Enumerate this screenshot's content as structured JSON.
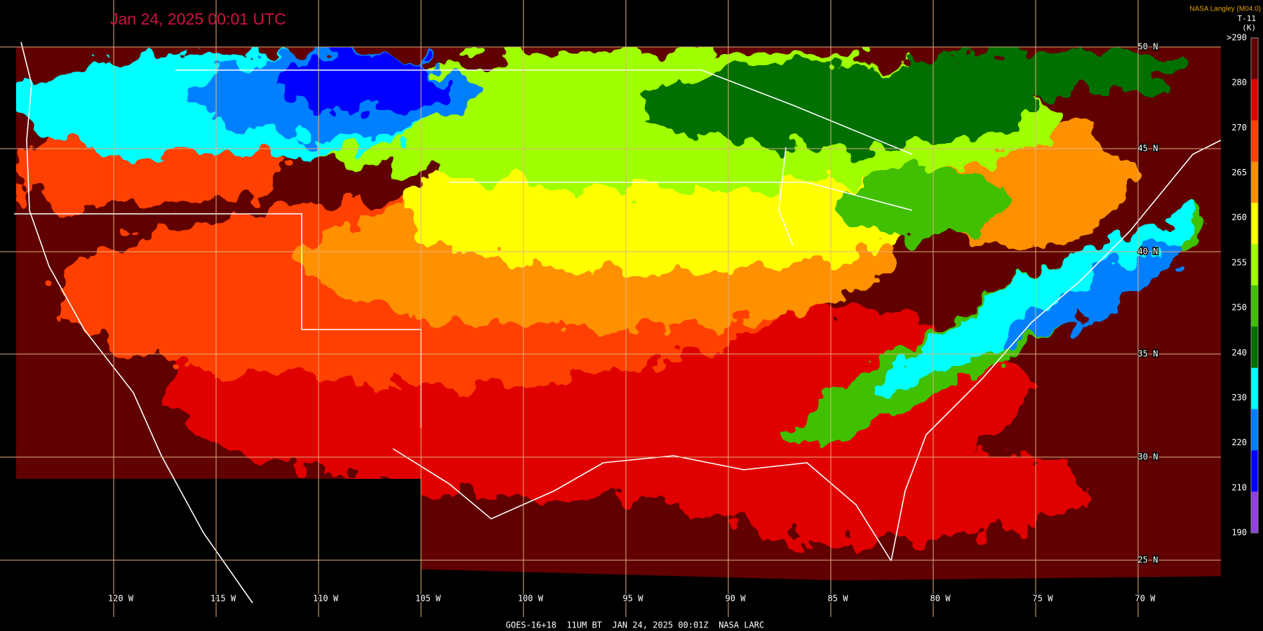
{
  "header": {
    "title": "Jan 24, 2025 00:01 UTC",
    "source": "NASA Langley (M04.0)",
    "product": "T-11",
    "unit": "(K)"
  },
  "colorbar": {
    "labels": [
      ">290",
      "280",
      "270",
      "265",
      "260",
      "255",
      "250",
      "240",
      "230",
      "220",
      "210",
      "190"
    ],
    "colors": [
      "#600000",
      "#e00000",
      "#ff4000",
      "#ff9000",
      "#ffff00",
      "#a0ff00",
      "#40c000",
      "#007000",
      "#00ffff",
      "#0080ff",
      "#0000ff",
      "#9040e0"
    ]
  },
  "latitude_labels": [
    "50 N",
    "45 N",
    "40 N",
    "35 N",
    "30 N",
    "25 N"
  ],
  "longitude_labels": [
    "120 W",
    "115 W",
    "110 W",
    "105 W",
    "100 W",
    "95 W",
    "90 W",
    "85 W",
    "80 W",
    "75 W",
    "70 W"
  ],
  "footer": "GOES-16+18  11UM BT  JAN 24, 2025 00:01Z  NASA LARC"
}
